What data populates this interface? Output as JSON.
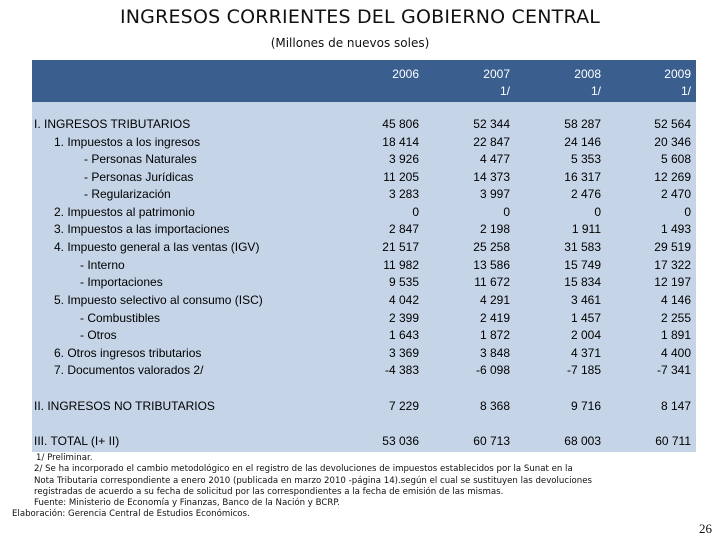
{
  "title": "INGRESOS CORRIENTES DEL GOBIERNO CENTRAL",
  "subtitle": "(Millones de nuevos soles)",
  "columns": [
    {
      "year": "2006",
      "note": ""
    },
    {
      "year": "2007",
      "note": "1/"
    },
    {
      "year": "2008",
      "note": "1/"
    },
    {
      "year": "2009",
      "note": "1/"
    }
  ],
  "rows": [
    {
      "label": "I.  INGRESOS TRIBUTARIOS",
      "values": [
        "45 806",
        "52 344",
        "58 287",
        "52 564"
      ]
    },
    {
      "label": "1. Impuestos a los ingresos",
      "values": [
        "18 414",
        "22 847",
        "24 146",
        "20 346"
      ]
    },
    {
      "label": "- Personas Naturales",
      "values": [
        "3 926",
        "4 477",
        "5 353",
        "5 608"
      ]
    },
    {
      "label": "- Personas Jurídicas",
      "values": [
        "11 205",
        "14 373",
        "16 317",
        "12 269"
      ]
    },
    {
      "label": "- Regularización",
      "values": [
        "3 283",
        "3 997",
        "2 476",
        "2 470"
      ]
    },
    {
      "label": "2. Impuestos al patrimonio",
      "values": [
        "0",
        "0",
        "0",
        "0"
      ]
    },
    {
      "label": "3. Impuestos a las importaciones",
      "values": [
        "2 847",
        "2 198",
        "1 911",
        "1 493"
      ]
    },
    {
      "label": "4. Impuesto general a las ventas (IGV)",
      "values": [
        "21 517",
        "25 258",
        "31 583",
        "29 519"
      ]
    },
    {
      "label": "- Interno",
      "values": [
        "11 982",
        "13 586",
        "15 749",
        "17 322"
      ]
    },
    {
      "label": "- Importaciones",
      "values": [
        "9 535",
        "11 672",
        "15 834",
        "12 197"
      ]
    },
    {
      "label": "5. Impuesto selectivo al consumo (ISC)",
      "values": [
        "4 042",
        "4 291",
        "3 461",
        "4 146"
      ]
    },
    {
      "label": "- Combustibles",
      "values": [
        "2 399",
        "2 419",
        "1 457",
        "2 255"
      ]
    },
    {
      "label": "- Otros",
      "values": [
        "1 643",
        "1 872",
        "2 004",
        "1 891"
      ]
    },
    {
      "label": "6. Otros ingresos tributarios",
      "values": [
        "3 369",
        "3 848",
        "4 371",
        "4 400"
      ]
    },
    {
      "label": "7. Documentos valorados 2/",
      "values": [
        "-4 383",
        "-6 098",
        "-7 185",
        "-7 341"
      ]
    },
    {
      "label": "II.  INGRESOS NO TRIBUTARIOS",
      "values": [
        "7 229",
        "8 368",
        "9 716",
        "8 147"
      ]
    },
    {
      "label": "III. TOTAL (I+ II)",
      "values": [
        "53 036",
        "60 713",
        "68 003",
        "60 711"
      ]
    }
  ],
  "footnotes": [
    "1/ Preliminar.",
    "2/ Se ha incorporado el cambio metodológico en el registro de las devoluciones de impuestos establecidos por la Sunat en la",
    "Nota Tributaria correspondiente a enero 2010 (publicada en marzo 2010 -página 14).según el cual se sustituyen las devoluciones",
    "registradas de acuerdo a su fecha de solicitud por las correspondientes a la fecha de emisión de las mismas.",
    "Fuente: Ministerio de Economía y Finanzas, Banco de la Nación y BCRP.",
    "Elaboración: Gerencia Central de Estudios Económicos."
  ],
  "page_number": "26"
}
